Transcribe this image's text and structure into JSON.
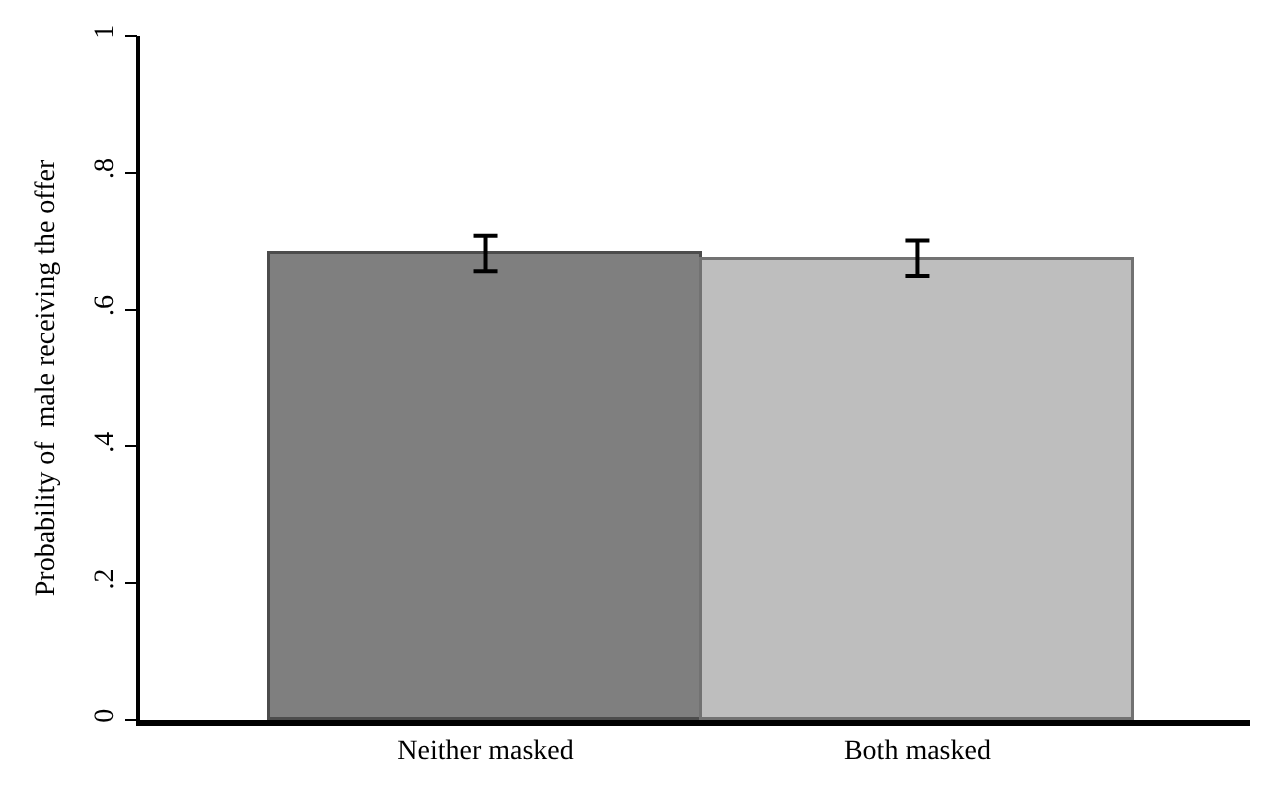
{
  "chart_data": {
    "type": "bar",
    "ylabel": "Probability of  male receiving the offer",
    "categories": [
      "Neither masked",
      "Both masked"
    ],
    "values": [
      0.68,
      0.673
    ],
    "colors": [
      "#7f7f7f",
      "#bebebe"
    ],
    "errors": [
      [
        0.656,
        0.708
      ],
      [
        0.649,
        0.701
      ]
    ],
    "ylim": [
      0,
      1
    ],
    "yticks": [
      {
        "value": 0,
        "label": "0"
      },
      {
        "value": 0.2,
        "label": ".2"
      },
      {
        "value": 0.4,
        "label": ".4"
      },
      {
        "value": 0.6,
        "label": ".6"
      },
      {
        "value": 0.8,
        "label": ".8"
      },
      {
        "value": 1,
        "label": "1"
      }
    ],
    "tick_labels": true
  }
}
